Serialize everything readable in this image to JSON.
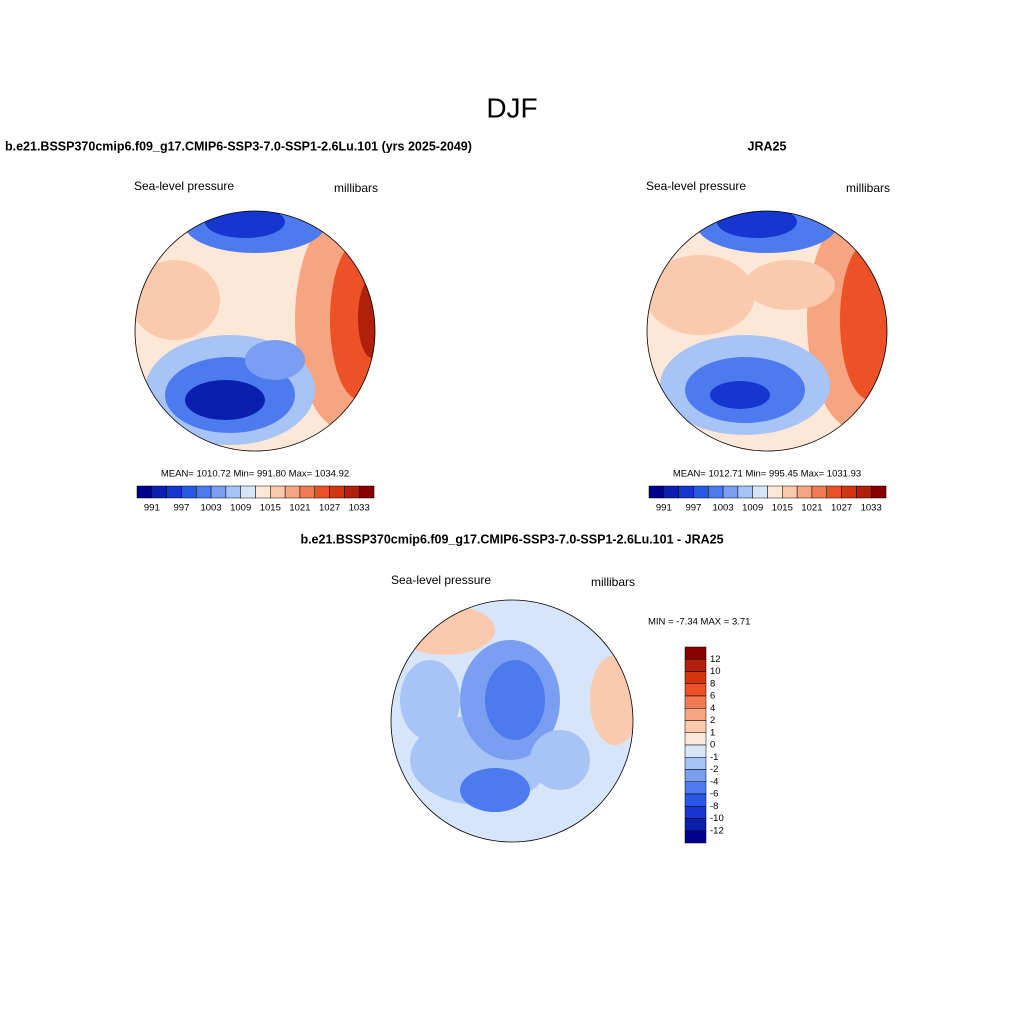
{
  "title": "DJF",
  "colors": [
    "#00008b",
    "#0a1fae",
    "#1637cf",
    "#2a58e6",
    "#4d7bef",
    "#7a9ff2",
    "#a8c3f6",
    "#d6e5f9",
    "#fde8d8",
    "#fbc9ae",
    "#f7a482",
    "#f27b53",
    "#ec5127",
    "#d6360e",
    "#b1200a",
    "#870000"
  ],
  "panels": [
    {
      "title": "b.e21.BSSP370cmip6.f09_g17.CMIP6-SSP3-7.0-SSP1-2.6Lu.101 (yrs 2025-2049)",
      "left_label": "Sea-level pressure",
      "right_label": "millibars",
      "stats": "MEAN= 1010.72  Min= 991.80  Max= 1034.92",
      "colorbar_labels": [
        991,
        997,
        1003,
        1009,
        1015,
        1021,
        1027,
        1033
      ]
    },
    {
      "title": "JRA25",
      "left_label": "Sea-level pressure",
      "right_label": "millibars",
      "stats": "MEAN= 1012.71  Min= 995.45  Max= 1031.93",
      "colorbar_labels": [
        991,
        997,
        1003,
        1009,
        1015,
        1021,
        1027,
        1033
      ]
    },
    {
      "title": "b.e21.BSSP370cmip6.f09_g17.CMIP6-SSP3-7.0-SSP1-2.6Lu.101 - JRA25",
      "left_label": "Sea-level pressure",
      "right_label": "millibars",
      "stats": "MIN =  -7.34 MAX =   3.71",
      "colorbar_labels": [
        12,
        10,
        8,
        6,
        4,
        2,
        1,
        0,
        -1,
        -2,
        -4,
        -6,
        -8,
        -10,
        -12
      ]
    }
  ]
}
